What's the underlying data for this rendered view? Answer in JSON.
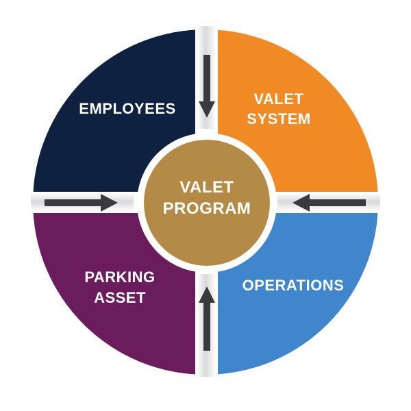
{
  "center": {
    "line1": "VALET",
    "line2": "PROGRAM",
    "color": "#B38B47"
  },
  "quadrants": {
    "employees": {
      "line1": "EMPLOYEES",
      "color": "#0F2140"
    },
    "valet_system": {
      "line1": "VALET",
      "line2": "SYSTEM",
      "color": "#F08A24"
    },
    "parking_asset": {
      "line1": "PARKING",
      "line2": "ASSET",
      "color": "#6A1C5C"
    },
    "operations": {
      "line1": "OPERATIONS",
      "color": "#3F86CC"
    }
  },
  "colors": {
    "arrow": "#3A3A3C",
    "arrow_highlight": "#E6E6E8",
    "gap": "#FFFFFF"
  }
}
